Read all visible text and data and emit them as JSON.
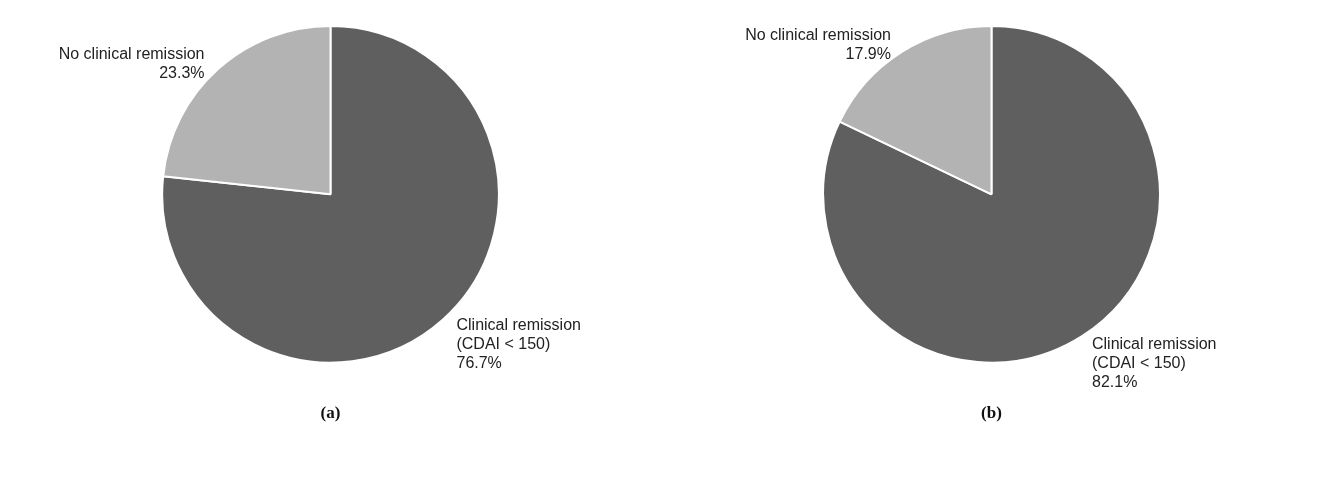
{
  "chart_data": [
    {
      "type": "pie",
      "title": "(a)",
      "categories": [
        "Clinical remission (CDAI < 150)",
        "No clinical remission"
      ],
      "values": [
        76.7,
        23.3
      ],
      "colors": [
        "#5f5f5f",
        "#b3b3b3"
      ],
      "value_labels": [
        "76.7%",
        "23.3%"
      ],
      "legend": false
    },
    {
      "type": "pie",
      "title": "(b)",
      "categories": [
        "Clinical remission (CDAI < 150)",
        "No clinical remission"
      ],
      "values": [
        82.1,
        17.9
      ],
      "colors": [
        "#5f5f5f",
        "#b3b3b3"
      ],
      "value_labels": [
        "82.1%",
        "17.9%"
      ],
      "legend": false
    }
  ]
}
